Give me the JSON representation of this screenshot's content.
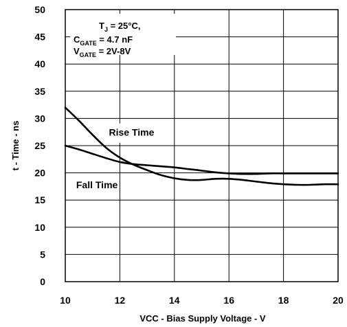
{
  "chart_data": {
    "type": "line",
    "xlabel": "VCC - Bias Supply Voltage - V",
    "ylabel": "t - Time - ns",
    "xlim": [
      10,
      20
    ],
    "ylim": [
      0,
      50
    ],
    "x_ticks": [
      "10",
      "12",
      "14",
      "16",
      "18",
      "20"
    ],
    "y_ticks": [
      "0",
      "5",
      "10",
      "15",
      "20",
      "25",
      "30",
      "35",
      "40",
      "45",
      "50"
    ],
    "grid": true,
    "conditions": {
      "line1": {
        "main": "T",
        "sub": "J",
        "rest": " = 25°C,"
      },
      "line2": {
        "main": "C",
        "sub": "GATE",
        "rest": " = 4.7 nF"
      },
      "line3": {
        "main": "V",
        "sub": "GATE",
        "rest": " = 2V-8V"
      }
    },
    "series": [
      {
        "name": "Rise Time",
        "x": [
          10,
          10.5,
          11,
          11.5,
          12,
          12.5,
          13,
          13.5,
          14,
          14.5,
          15,
          15.5,
          16,
          16.5,
          17,
          17.5,
          18,
          18.5,
          19,
          19.5,
          20
        ],
        "y": [
          32,
          29.6,
          27,
          24.6,
          22.8,
          21.5,
          20.5,
          19.6,
          19.0,
          18.7,
          18.7,
          18.9,
          18.9,
          18.7,
          18.4,
          18.1,
          17.9,
          17.8,
          17.8,
          17.9,
          17.9
        ]
      },
      {
        "name": "Fall Time",
        "x": [
          10,
          10.5,
          11,
          11.5,
          12,
          12.5,
          13,
          13.5,
          14,
          14.5,
          15,
          15.5,
          16,
          16.5,
          17,
          17.5,
          18,
          18.5,
          19,
          19.5,
          20
        ],
        "y": [
          25,
          24.3,
          23.5,
          22.7,
          22.0,
          21.6,
          21.4,
          21.2,
          21.0,
          20.7,
          20.4,
          20.1,
          19.9,
          19.8,
          19.8,
          19.9,
          19.9,
          19.9,
          19.9,
          19.9,
          19.9
        ]
      }
    ],
    "annotations": [
      {
        "text": "Rise Time",
        "x": 11.6,
        "y": 26.8
      },
      {
        "text": "Fall Time",
        "x": 10.4,
        "y": 17.2
      }
    ]
  }
}
